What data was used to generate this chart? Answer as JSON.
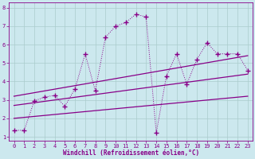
{
  "xlabel": "Windchill (Refroidissement éolien,°C)",
  "bg_color": "#cce8ee",
  "grid_color": "#aacccc",
  "line_color": "#880088",
  "xlim": [
    -0.5,
    23.5
  ],
  "ylim": [
    0.8,
    8.3
  ],
  "xticks": [
    0,
    1,
    2,
    3,
    4,
    5,
    6,
    7,
    8,
    9,
    10,
    11,
    12,
    13,
    14,
    15,
    16,
    17,
    18,
    19,
    20,
    21,
    22,
    23
  ],
  "yticks": [
    1,
    2,
    3,
    4,
    5,
    6,
    7,
    8
  ],
  "series1_x": [
    0,
    1,
    2,
    3,
    4,
    5,
    6,
    7,
    8,
    9,
    10,
    11,
    12,
    13,
    14,
    15,
    16,
    17,
    18,
    19,
    20,
    21,
    22,
    23
  ],
  "series1_y": [
    1.35,
    1.35,
    2.95,
    3.15,
    3.25,
    2.65,
    3.6,
    5.5,
    3.5,
    6.4,
    7.0,
    7.2,
    7.65,
    7.5,
    1.2,
    4.3,
    5.5,
    3.85,
    5.2,
    6.1,
    5.5,
    5.5,
    5.5,
    4.6
  ],
  "line1_x": [
    0,
    23
  ],
  "line1_y": [
    2.0,
    3.2
  ],
  "line2_x": [
    0,
    23
  ],
  "line2_y": [
    2.7,
    4.4
  ],
  "line3_x": [
    0,
    23
  ],
  "line3_y": [
    3.2,
    5.4
  ]
}
